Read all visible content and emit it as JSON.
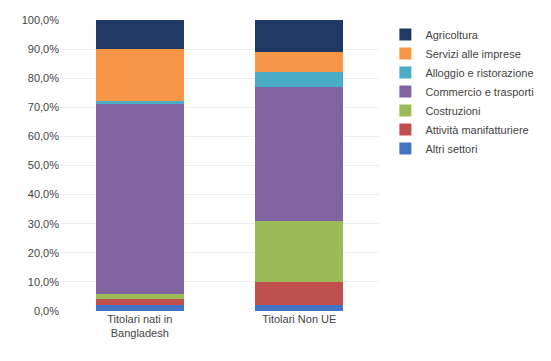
{
  "chart_data": {
    "type": "bar",
    "stacked": true,
    "categories": [
      "Titolari nati in Bangladesh",
      "Titolari Non UE"
    ],
    "series": [
      {
        "name": "Altri settori",
        "color": "#4472c4",
        "values": [
          2.0,
          2.0
        ]
      },
      {
        "name": "Attività manifatturiere",
        "color": "#c0504d",
        "values": [
          2.0,
          8.0
        ]
      },
      {
        "name": "Costruzioni",
        "color": "#9bbb59",
        "values": [
          2.0,
          21.0
        ]
      },
      {
        "name": "Commercio e trasporti",
        "color": "#8064a2",
        "values": [
          65.0,
          46.0
        ]
      },
      {
        "name": "Alloggio e ristorazione",
        "color": "#4bacc6",
        "values": [
          1.0,
          5.0
        ]
      },
      {
        "name": "Servizi alle imprese",
        "color": "#f79646",
        "values": [
          18.0,
          7.0
        ]
      },
      {
        "name": "Agricoltura",
        "color": "#1f3864",
        "values": [
          10.0,
          11.0
        ]
      }
    ],
    "ylim": [
      0,
      100
    ],
    "yticks": [
      {
        "value": 0,
        "label": "0,0%"
      },
      {
        "value": 10,
        "label": "10,0%"
      },
      {
        "value": 20,
        "label": "20,0%"
      },
      {
        "value": 30,
        "label": "30,0%"
      },
      {
        "value": 40,
        "label": "40,0%"
      },
      {
        "value": 50,
        "label": "50,0%"
      },
      {
        "value": 60,
        "label": "60,0%"
      },
      {
        "value": 70,
        "label": "70,0%"
      },
      {
        "value": 80,
        "label": "80,0%"
      },
      {
        "value": 90,
        "label": "90,0%"
      },
      {
        "value": 100,
        "label": "100,0%"
      }
    ],
    "grid": true,
    "legend": "right"
  }
}
